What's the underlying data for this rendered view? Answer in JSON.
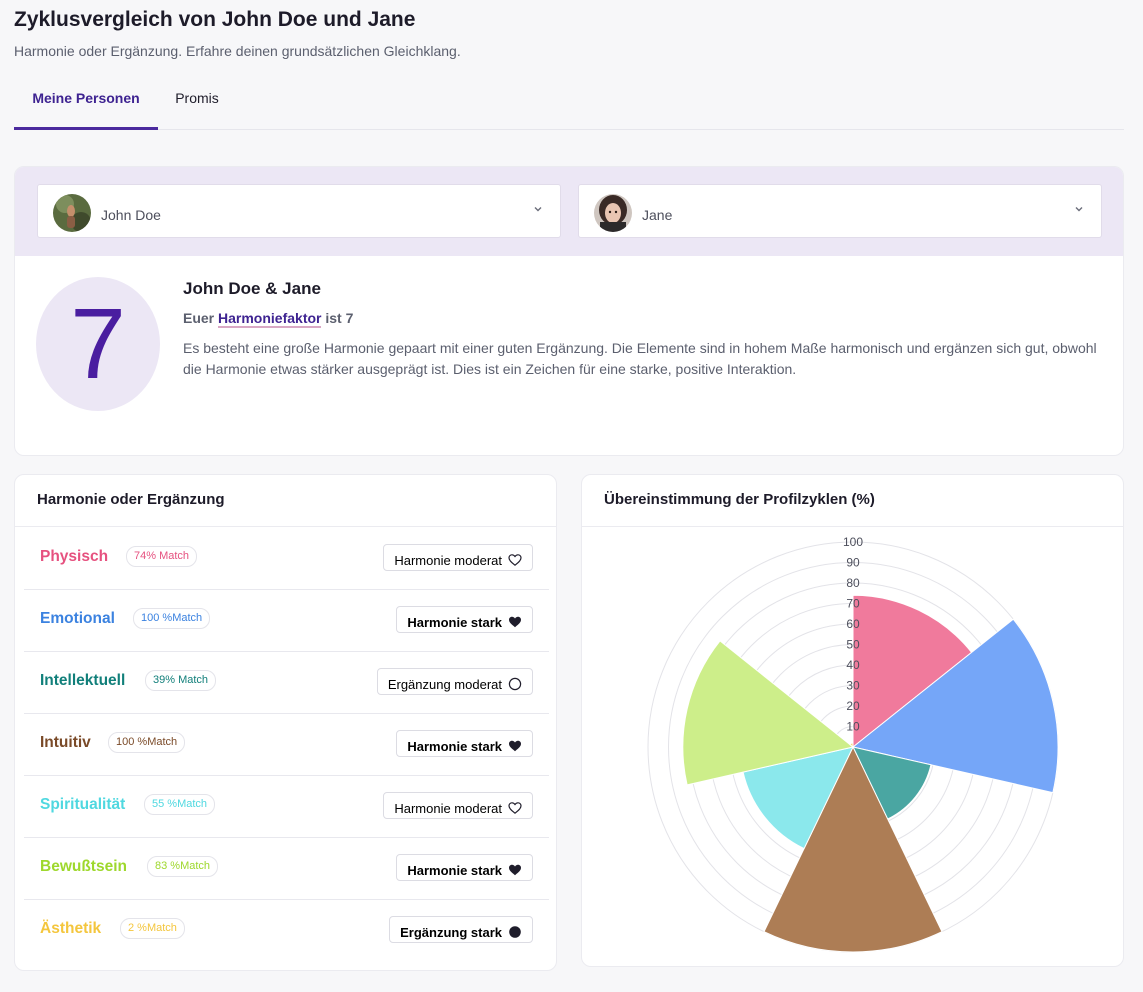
{
  "header": {
    "title": "Zyklusvergleich von John Doe und Jane",
    "subtitle": "Harmonie oder Ergänzung. Erfahre deinen grundsätzlichen Gleichklang."
  },
  "tabs": [
    {
      "label": "Meine Personen",
      "active": true
    },
    {
      "label": "Promis",
      "active": false
    }
  ],
  "selectors": {
    "person_a": "John Doe",
    "person_b": "Jane"
  },
  "summary": {
    "score": "7",
    "pair": "John Doe & Jane",
    "prefix": "Euer",
    "link": "Harmoniefaktor",
    "suffix": "ist 7",
    "description": "Es besteht eine große Harmonie gepaart mit einer guten Ergänzung. Die Elemente sind in hohem Maße harmonisch und ergänzen sich gut, obwohl die Harmonie etwas stärker ausgeprägt ist. Dies ist ein Zeichen für eine starke, positive Interaktion."
  },
  "harmony_card": {
    "title": "Harmonie oder Ergänzung",
    "rows": [
      {
        "name": "Physisch",
        "badge": "74% Match",
        "button": "Harmonie moderat",
        "icon": "heart-outline-icon",
        "color": "#e6517f"
      },
      {
        "name": "Emotional",
        "badge": "100 %Match",
        "button": "Harmonie stark",
        "icon": "heart-filled-icon",
        "color": "#3b82e0"
      },
      {
        "name": "Intellektuell",
        "badge": "39% Match",
        "button": "Ergänzung moderat",
        "icon": "circle-outline-icon",
        "color": "#117f7a"
      },
      {
        "name": "Intuitiv",
        "badge": "100 %Match",
        "button": "Harmonie stark",
        "icon": "heart-filled-icon",
        "color": "#7a4a28"
      },
      {
        "name": "Spiritualität",
        "badge": "55 %Match",
        "button": "Harmonie moderat",
        "icon": "heart-outline-icon",
        "color": "#4fd8e0"
      },
      {
        "name": "Bewußtsein",
        "badge": "83 %Match",
        "button": "Harmonie stark",
        "icon": "heart-filled-icon",
        "color": "#9ed82c"
      },
      {
        "name": "Ästhetik",
        "badge": "2 %Match",
        "button": "Ergänzung stark",
        "icon": "circle-filled-icon",
        "color": "#f4c63d"
      }
    ]
  },
  "chart_card": {
    "title": "Übereinstimmung der Profilzyklen (%)"
  },
  "chart_data": {
    "type": "polarArea",
    "title": "Übereinstimmung der Profilzyklen (%)",
    "categories": [
      "Physisch",
      "Emotional",
      "Intellektuell",
      "Intuitiv",
      "Spiritualität",
      "Bewußtsein",
      "Ästhetik"
    ],
    "values": [
      74,
      100,
      39,
      100,
      55,
      83,
      2
    ],
    "colors": [
      "#f07a9c",
      "#75a6f8",
      "#4aa6a2",
      "#ad7d55",
      "#8be8ec",
      "#cdee8a",
      "#f7d977"
    ],
    "rlim": [
      0,
      100
    ],
    "ticks": [
      "10",
      "20",
      "30",
      "40",
      "50",
      "60",
      "70",
      "80",
      "90",
      "100"
    ],
    "grid": true
  }
}
